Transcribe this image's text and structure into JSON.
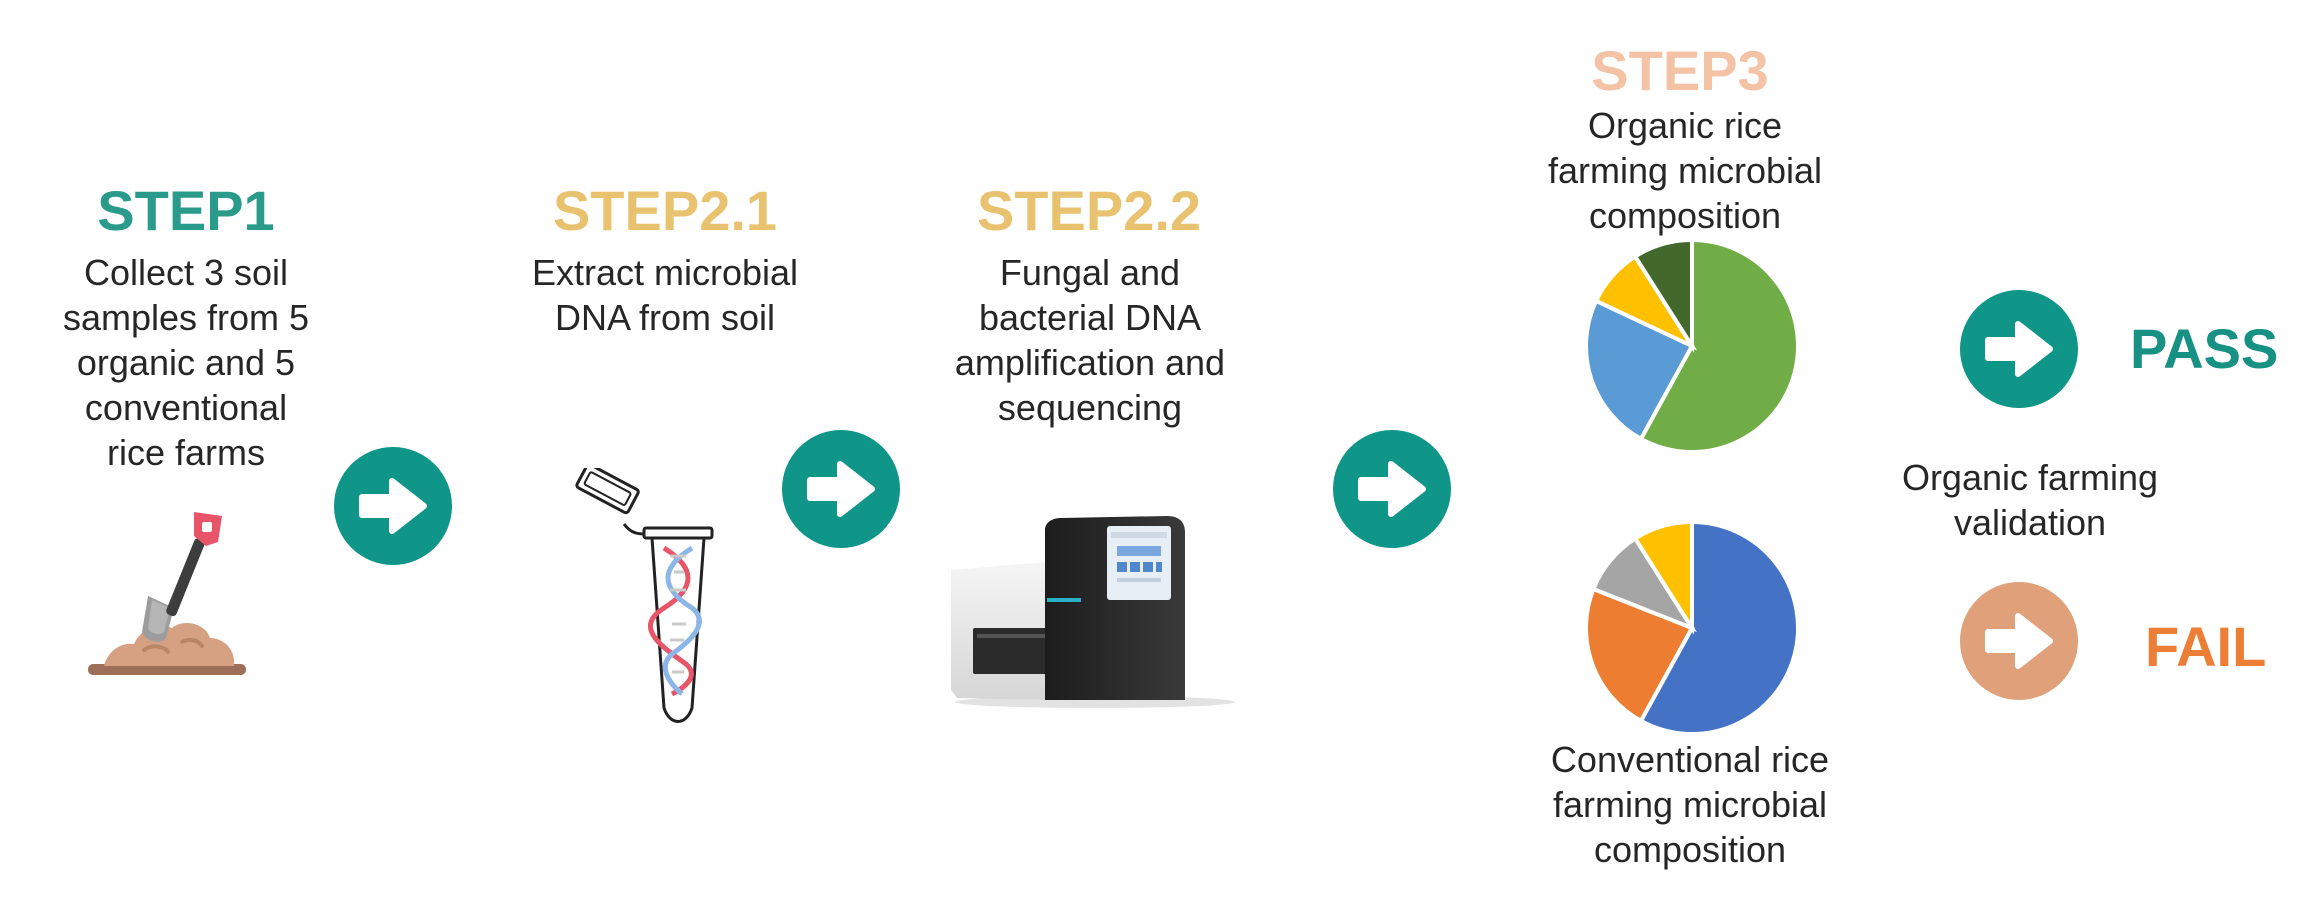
{
  "colors": {
    "step1": "#2a9a8b",
    "step2": "#e9c26f",
    "step3": "#f4c3a6",
    "arrow_teal": "#0f9688",
    "arrow_tan": "#dfa07a",
    "pass": "#179183",
    "fail": "#ec7e36",
    "text": "#262626"
  },
  "steps": [
    {
      "title": "STEP1",
      "lines": [
        "Collect 3 soil",
        "samples from 5",
        "organic and 5",
        "conventional",
        "rice farms"
      ],
      "icon": "shovel-soil-icon"
    },
    {
      "title": "STEP2.1",
      "lines": [
        "Extract microbial",
        "DNA from soil"
      ],
      "icon": "dna-tube-icon"
    },
    {
      "title": "STEP2.2",
      "lines": [
        "Fungal and",
        "bacterial DNA",
        "amplification and",
        "sequencing"
      ],
      "icon": "sequencer-icon"
    },
    {
      "title": "STEP3",
      "organic_lines": [
        "Organic rice",
        "farming microbial",
        "composition"
      ],
      "conventional_lines": [
        "Conventional rice",
        "farming microbial",
        "composition"
      ]
    }
  ],
  "validation": {
    "lines": [
      "Organic farming",
      "validation"
    ],
    "pass": "PASS",
    "fail": "FAIL"
  },
  "arrows": [
    "arrow-right-icon",
    "arrow-right-icon",
    "arrow-right-icon",
    "arrow-right-icon",
    "arrow-right-icon"
  ],
  "pies": [
    {
      "name": "organic",
      "values": [
        58,
        24,
        9,
        9
      ],
      "colors": [
        "#70ad47",
        "#5b9bd5",
        "#ffc000",
        "#43682b"
      ]
    },
    {
      "name": "conventional",
      "values": [
        58,
        23,
        10,
        9
      ],
      "colors": [
        "#4472c4",
        "#ed7d31",
        "#a5a5a5",
        "#ffc000"
      ]
    }
  ]
}
